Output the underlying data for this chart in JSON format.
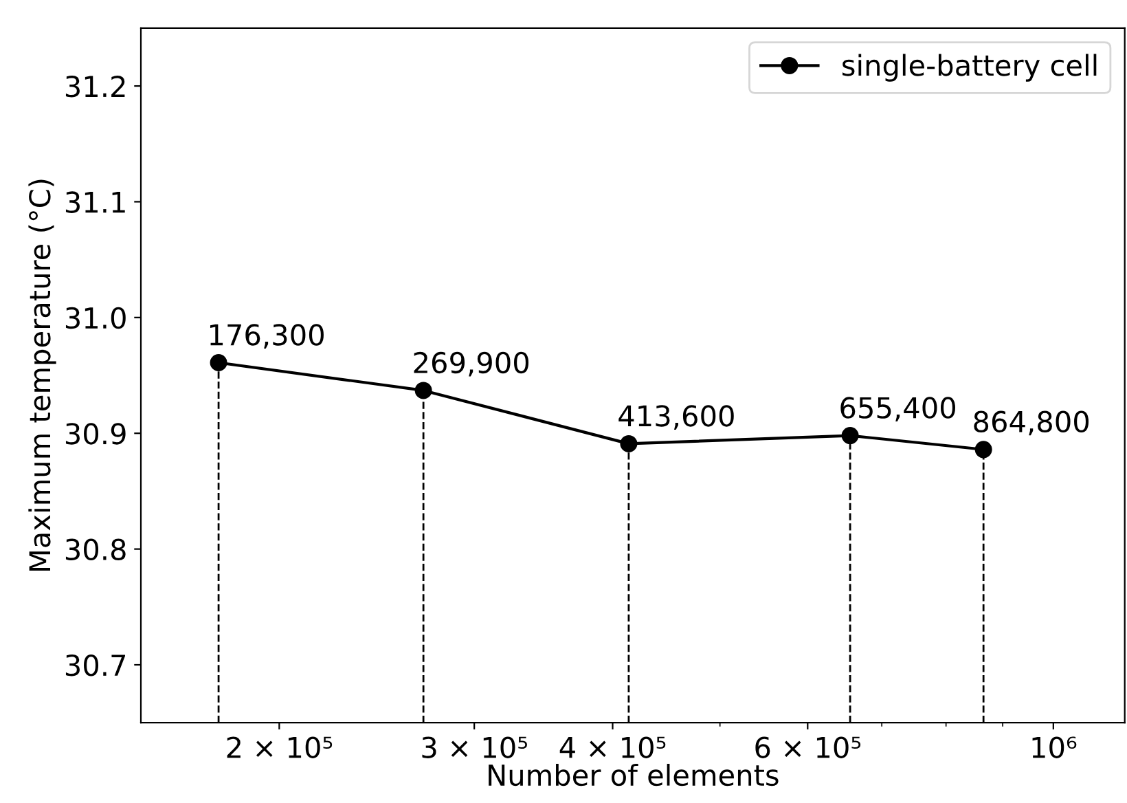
{
  "chart_data": {
    "type": "line",
    "xlabel": "Number of elements",
    "ylabel": "Maximum temperature (°C)",
    "log": "x",
    "xlim": [
      150000,
      1160000
    ],
    "ylim": [
      30.65,
      31.25
    ],
    "xticks": [
      {
        "value": 200000,
        "label": "2 × 10⁵"
      },
      {
        "value": 300000,
        "label": "3 × 10⁵"
      },
      {
        "value": 400000,
        "label": "4 × 10⁵"
      },
      {
        "value": 600000,
        "label": "6 × 10⁵"
      },
      {
        "value": 1000000,
        "label": "10⁶"
      }
    ],
    "yticks": [
      30.7,
      30.8,
      30.9,
      {
        "value": 31.0,
        "label": "31.0"
      },
      31.1,
      31.2
    ],
    "annotations": [
      {
        "text": "176,300",
        "x": 176300,
        "y": 30.961
      },
      {
        "text": "269,900",
        "x": 269900,
        "y": 30.937
      },
      {
        "text": "413,600",
        "x": 413600,
        "y": 30.891
      },
      {
        "text": "655,400",
        "x": 655400,
        "y": 30.898
      },
      {
        "text": "864,800",
        "x": 864800,
        "y": 30.886
      }
    ],
    "x": [
      176300,
      269900,
      413600,
      655400,
      864800
    ],
    "series": [
      {
        "name": "single-battery cell",
        "color": "#000000",
        "values": [
          30.961,
          30.937,
          30.891,
          30.898,
          30.886
        ]
      }
    ],
    "ref_lines": [
      {
        "axis": "x",
        "value": 176300,
        "color": "#000000",
        "line_style": "dashed"
      },
      {
        "axis": "x",
        "value": 269900,
        "color": "#000000",
        "line_style": "dashed"
      },
      {
        "axis": "x",
        "value": 413600,
        "color": "#000000",
        "line_style": "dashed"
      },
      {
        "axis": "x",
        "value": 655400,
        "color": "#000000",
        "line_style": "dashed"
      },
      {
        "axis": "x",
        "value": 864800,
        "color": "#000000",
        "line_style": "dashed"
      }
    ],
    "marker": "circle",
    "line_style": "solid",
    "legend": "top right",
    "grid": false
  }
}
